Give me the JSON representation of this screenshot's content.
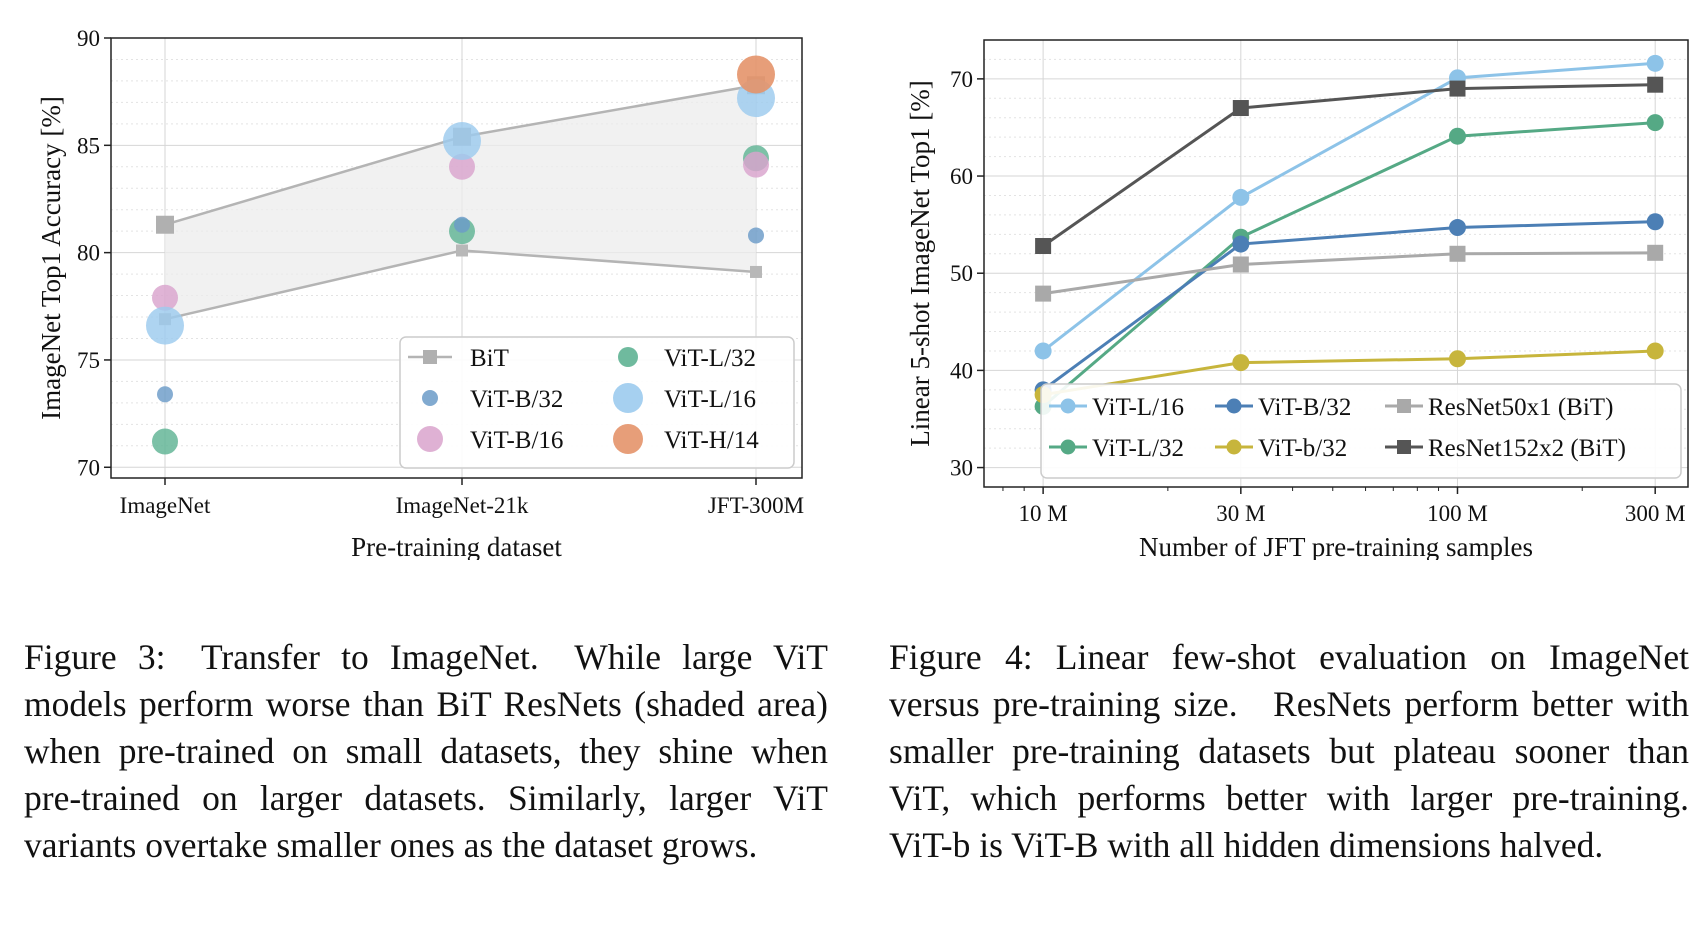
{
  "figure3": {
    "chart_data": {
      "type": "scatter",
      "xlabel": "Pre-training dataset",
      "ylabel": "ImageNet Top1 Accuracy [%]",
      "categories": [
        "ImageNet",
        "ImageNet-21k",
        "JFT-300M"
      ],
      "ylim": [
        69.5,
        90
      ],
      "yticks": [
        70,
        75,
        80,
        85,
        90
      ],
      "grid": true,
      "shaded_area": "between BiT min and max",
      "legend_position": "lower-right",
      "bit_upper": [
        81.3,
        85.4,
        87.8
      ],
      "bit_lower": [
        76.9,
        80.1,
        79.1
      ],
      "series": [
        {
          "name": "BiT",
          "marker": "square-line",
          "color": "#aaaaaa",
          "values": [
            81.3,
            85.4,
            87.8
          ]
        },
        {
          "name": "ViT-B/32",
          "marker": "circle",
          "size": "small",
          "color": "#6b9bc8",
          "values": [
            73.4,
            81.3,
            80.8
          ]
        },
        {
          "name": "ViT-B/16",
          "marker": "circle",
          "size": "medium",
          "color": "#d9a3cd",
          "values": [
            77.9,
            84.0,
            84.1
          ]
        },
        {
          "name": "ViT-L/32",
          "marker": "circle",
          "size": "medium",
          "color": "#5fb394",
          "values": [
            71.2,
            81.0,
            84.4
          ]
        },
        {
          "name": "ViT-L/16",
          "marker": "circle",
          "size": "large",
          "color": "#9ccbee",
          "values": [
            76.6,
            85.2,
            87.2
          ]
        },
        {
          "name": "ViT-H/14",
          "marker": "circle",
          "size": "large",
          "color": "#e4936a",
          "values": [
            null,
            null,
            88.3
          ]
        }
      ]
    },
    "caption": "Figure 3: Transfer to ImageNet. While large ViT models perform worse than BiT ResNets (shaded area) when pre-trained on small datasets, they shine when pre-trained on larger datasets. Similarly, larger ViT variants overtake smaller ones as the dataset grows."
  },
  "figure4": {
    "chart_data": {
      "type": "line",
      "xlabel": "Number of JFT pre-training samples",
      "ylabel": "Linear 5-shot ImageNet Top1 [%]",
      "x_scale": "log",
      "x": [
        10,
        30,
        100,
        300
      ],
      "xtick_labels": [
        "10 M",
        "30 M",
        "100 M",
        "300 M"
      ],
      "ylim": [
        28,
        74
      ],
      "yticks": [
        30,
        40,
        50,
        60,
        70
      ],
      "grid": true,
      "legend_position": "lower-right",
      "series": [
        {
          "name": "ViT-L/16",
          "marker": "circle",
          "color": "#8dc3e8",
          "values": [
            42.0,
            57.8,
            70.1,
            71.6
          ]
        },
        {
          "name": "ViT-L/32",
          "marker": "circle",
          "color": "#55a985",
          "values": [
            36.3,
            53.7,
            64.1,
            65.5
          ]
        },
        {
          "name": "ViT-B/32",
          "marker": "circle",
          "color": "#4c7fb5",
          "values": [
            38.0,
            53.0,
            54.7,
            55.3
          ]
        },
        {
          "name": "ViT-b/32",
          "marker": "circle",
          "color": "#c7b53c",
          "values": [
            37.5,
            40.8,
            41.2,
            42.0
          ]
        },
        {
          "name": "ResNet50x1 (BiT)",
          "marker": "square",
          "color": "#a9a9a9",
          "values": [
            47.9,
            50.9,
            52.0,
            52.1
          ]
        },
        {
          "name": "ResNet152x2 (BiT)",
          "marker": "square",
          "color": "#555555",
          "values": [
            52.8,
            67.0,
            69.0,
            69.4
          ]
        }
      ]
    },
    "caption": "Figure 4: Linear few-shot evaluation on ImageNet versus pre-training size. ResNets perform better with smaller pre-training datasets but plateau sooner than ViT, which performs better with larger pre-training. ViT-b is ViT-B with all hidden dimensions halved."
  }
}
